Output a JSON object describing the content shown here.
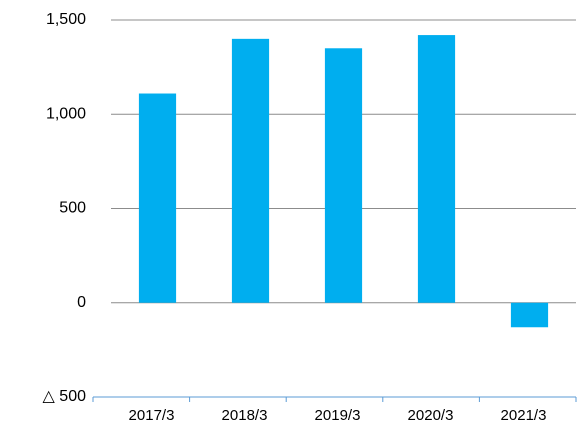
{
  "chart_data": {
    "type": "bar",
    "categories": [
      "2017/3",
      "2018/3",
      "2019/3",
      "2020/3",
      "2021/3"
    ],
    "values": [
      1110,
      1400,
      1350,
      1420,
      -130
    ],
    "color": "#00aeef",
    "ylim": [
      -500,
      1500
    ],
    "yticks": [
      {
        "value": -500,
        "label": "△ 500"
      },
      0,
      500,
      {
        "value": 1000,
        "label": "1,000"
      },
      {
        "value": 1500,
        "label": "1,500"
      }
    ],
    "grid": true
  }
}
